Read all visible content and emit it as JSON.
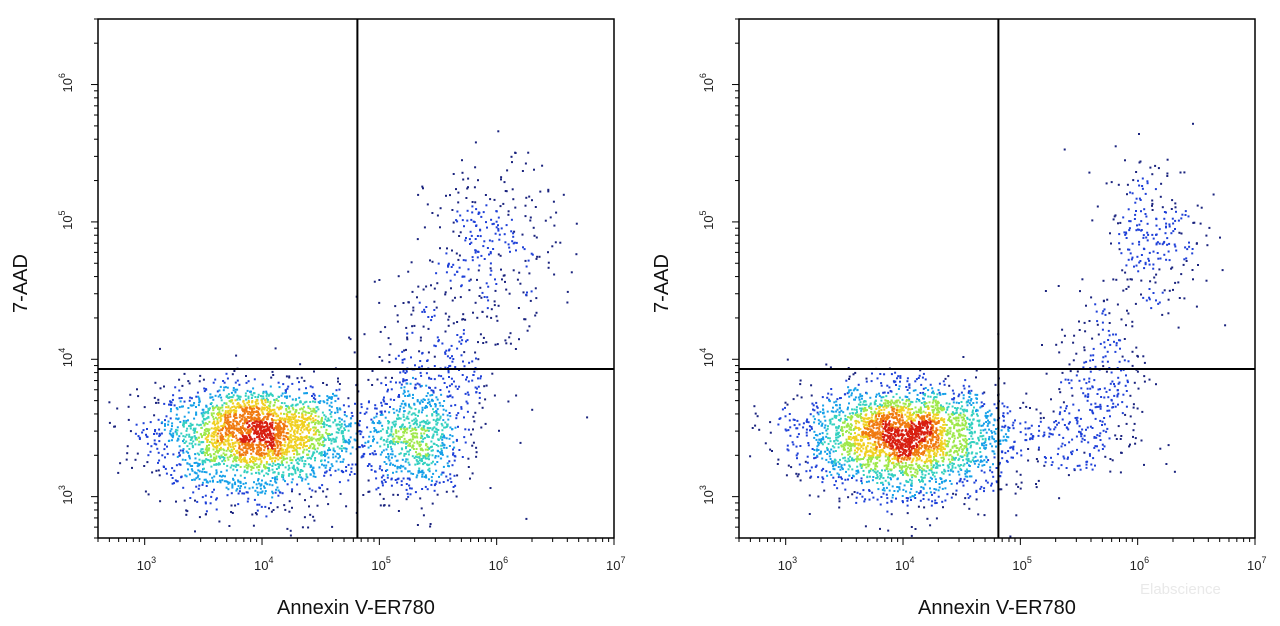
{
  "chart_data": [
    {
      "type": "scatter",
      "title": "",
      "xlabel": "Annexin V-ER780",
      "ylabel": "7-AAD",
      "xscale": "log",
      "yscale": "log",
      "xlim": [
        400,
        10000000
      ],
      "ylim": [
        500,
        3000000
      ],
      "x_ticks": [
        {
          "value": 1000,
          "base": "10",
          "exp": "3"
        },
        {
          "value": 10000,
          "base": "10",
          "exp": "4"
        },
        {
          "value": 100000,
          "base": "10",
          "exp": "5"
        },
        {
          "value": 1000000,
          "base": "10",
          "exp": "6"
        },
        {
          "value": 10000000,
          "base": "10",
          "exp": "7"
        }
      ],
      "y_ticks": [
        {
          "value": 1000,
          "base": "10",
          "exp": "3"
        },
        {
          "value": 10000,
          "base": "10",
          "exp": "4"
        },
        {
          "value": 100000,
          "base": "10",
          "exp": "5"
        },
        {
          "value": 1000000,
          "base": "10",
          "exp": "6"
        }
      ],
      "quadrant_gate": {
        "x": 65000,
        "y": 8500
      },
      "grid": false,
      "legend": "none",
      "color_scale": [
        "#1a237e",
        "#1e40d8",
        "#15a0e8",
        "#33d0c0",
        "#9ee84a",
        "#f0d020",
        "#f07a10",
        "#d81e10"
      ],
      "populations": [
        {
          "name": "",
          "center_x": 9000,
          "center_y": 3000,
          "spread_x": 0.42,
          "spread_y": 0.17,
          "count": 2400
        },
        {
          "name": "",
          "center_x": 200000,
          "center_y": 2600,
          "spread_x": 0.2,
          "spread_y": 0.2,
          "count": 650
        },
        {
          "name": "",
          "center_x": 300000,
          "center_y": 8000,
          "spread_x": 0.3,
          "spread_y": 0.35,
          "count": 350
        },
        {
          "name": "",
          "center_x": 900000,
          "center_y": 70000,
          "spread_x": 0.28,
          "spread_y": 0.3,
          "count": 280
        },
        {
          "name": "",
          "center_x": 9000,
          "center_y": 1500,
          "spread_x": 0.4,
          "spread_y": 0.18,
          "count": 350
        }
      ]
    },
    {
      "type": "scatter",
      "title": "",
      "xlabel": "Annexin V-ER780",
      "ylabel": "7-AAD",
      "xscale": "log",
      "yscale": "log",
      "xlim": [
        400,
        10000000
      ],
      "ylim": [
        500,
        3000000
      ],
      "x_ticks": [
        {
          "value": 1000,
          "base": "10",
          "exp": "3"
        },
        {
          "value": 10000,
          "base": "10",
          "exp": "4"
        },
        {
          "value": 100000,
          "base": "10",
          "exp": "5"
        },
        {
          "value": 1000000,
          "base": "10",
          "exp": "6"
        },
        {
          "value": 10000000,
          "base": "10",
          "exp": "7"
        }
      ],
      "y_ticks": [
        {
          "value": 1000,
          "base": "10",
          "exp": "3"
        },
        {
          "value": 10000,
          "base": "10",
          "exp": "4"
        },
        {
          "value": 100000,
          "base": "10",
          "exp": "5"
        },
        {
          "value": 1000000,
          "base": "10",
          "exp": "6"
        }
      ],
      "quadrant_gate": {
        "x": 65000,
        "y": 8500
      },
      "grid": false,
      "legend": "none",
      "color_scale": [
        "#1a237e",
        "#1e40d8",
        "#15a0e8",
        "#33d0c0",
        "#9ee84a",
        "#f0d020",
        "#f07a10",
        "#d81e10"
      ],
      "populations": [
        {
          "name": "",
          "center_x": 10000,
          "center_y": 2900,
          "spread_x": 0.42,
          "spread_y": 0.17,
          "count": 2600
        },
        {
          "name": "",
          "center_x": 250000,
          "center_y": 2700,
          "spread_x": 0.3,
          "spread_y": 0.18,
          "count": 200
        },
        {
          "name": "",
          "center_x": 500000,
          "center_y": 9000,
          "spread_x": 0.2,
          "spread_y": 0.3,
          "count": 180
        },
        {
          "name": "",
          "center_x": 1300000,
          "center_y": 80000,
          "spread_x": 0.22,
          "spread_y": 0.3,
          "count": 260
        },
        {
          "name": "",
          "center_x": 10000,
          "center_y": 1500,
          "spread_x": 0.4,
          "spread_y": 0.18,
          "count": 350
        }
      ]
    }
  ],
  "watermark": "Elabscience"
}
